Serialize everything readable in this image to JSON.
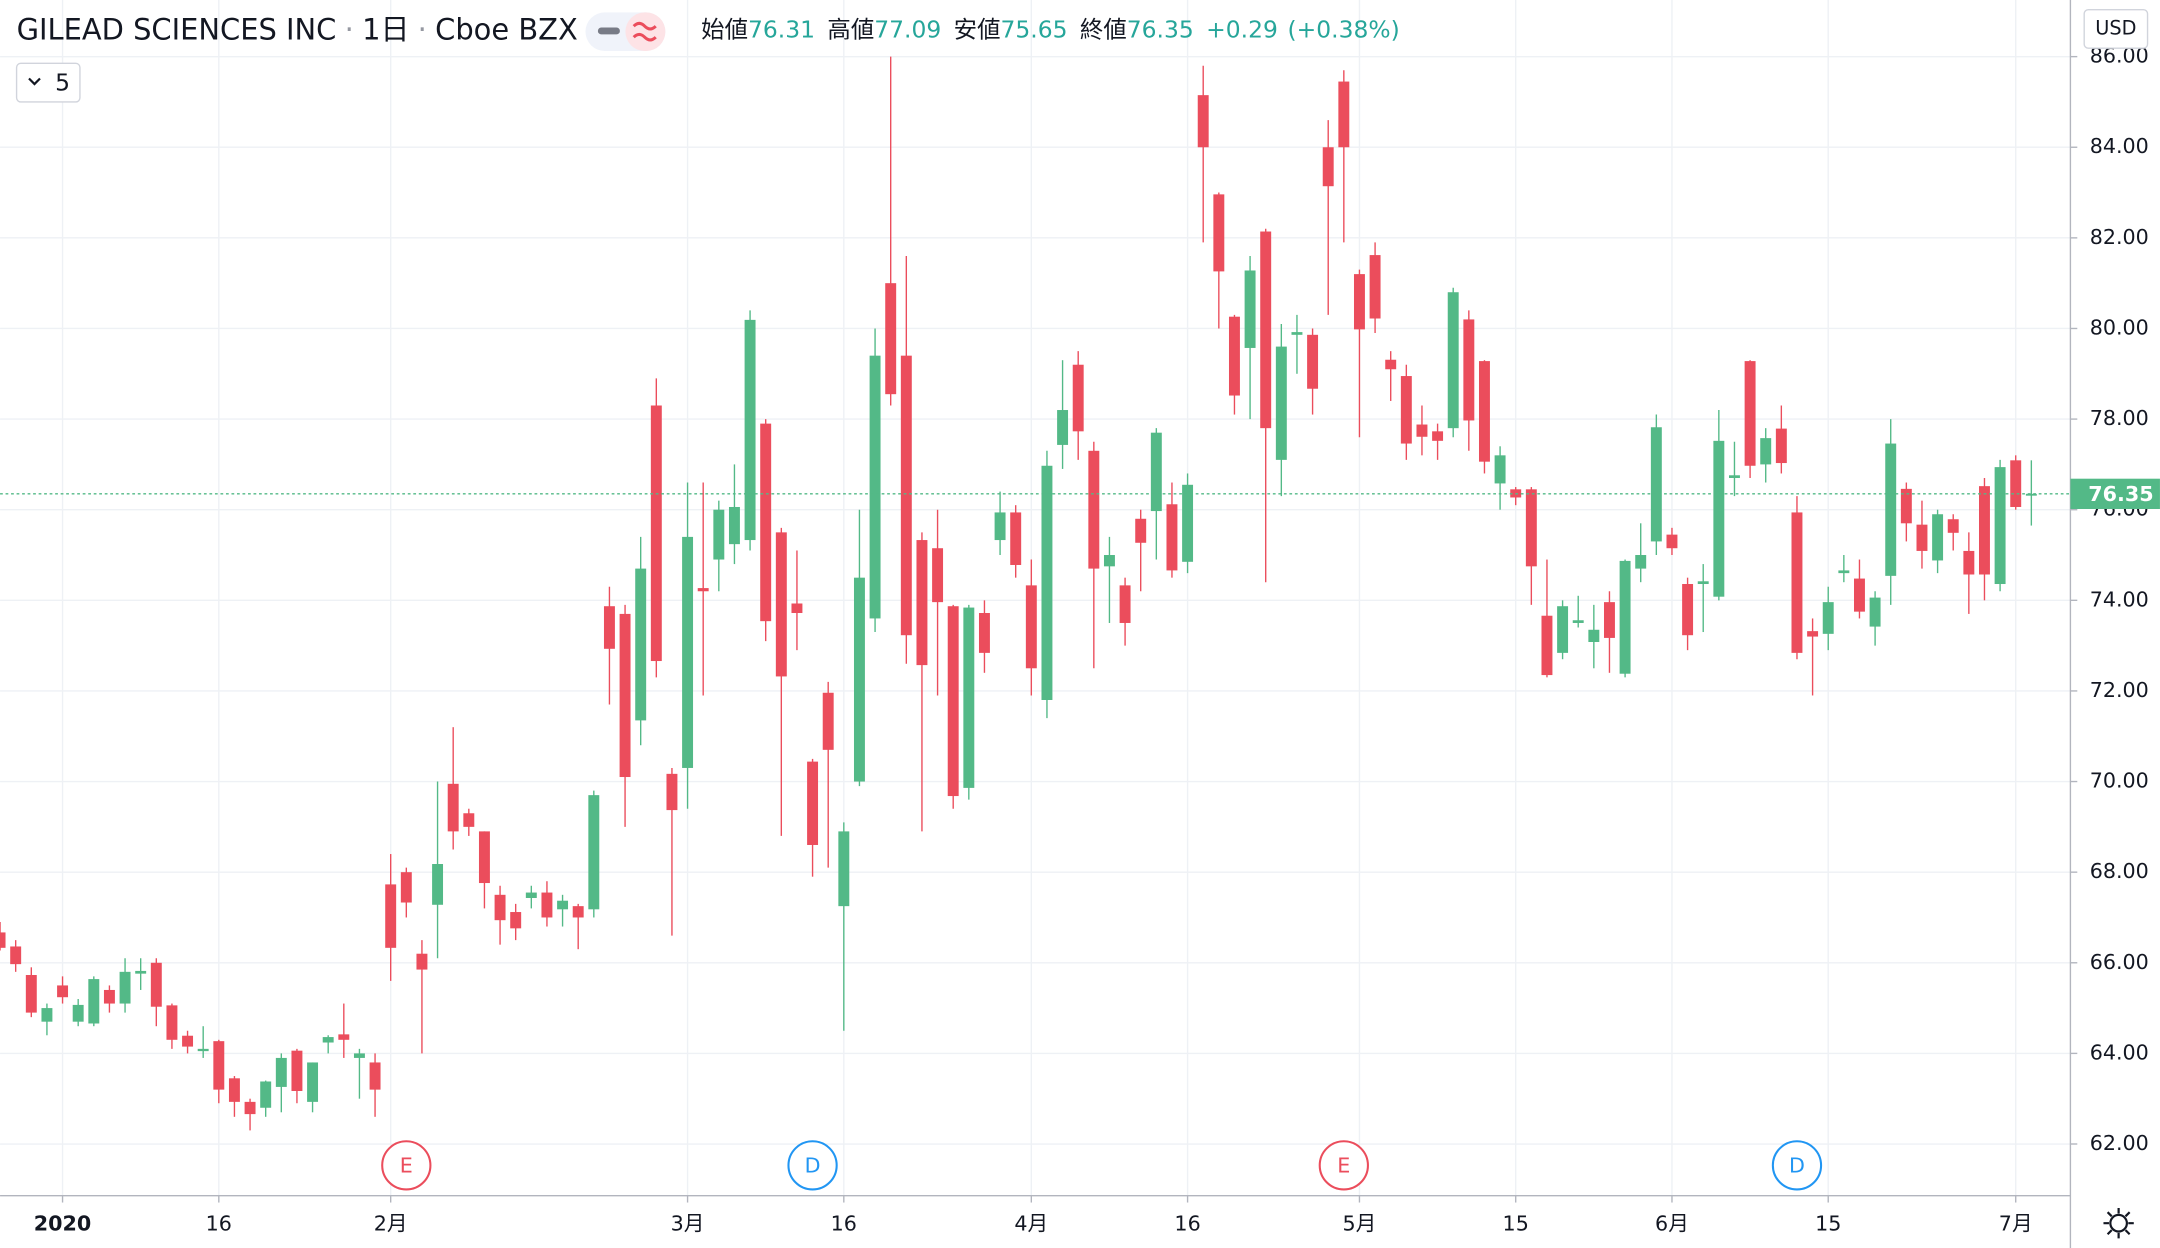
{
  "header": {
    "symbol": "GILEAD SCIENCES INC",
    "interval": "1日",
    "exchange": "Cboe BZX",
    "open_label": "始値",
    "high_label": "高値",
    "low_label": "安値",
    "close_label": "終値",
    "change": "+0.29",
    "change_pct": "(+0.38%)"
  },
  "ui": {
    "bars_setting": "5",
    "currency": "USD"
  },
  "chart_data": {
    "type": "candlestick",
    "up_color": "#53b987",
    "down_color": "#eb4d5c",
    "grid": true,
    "open": [
      66.67,
      66.36,
      65.73,
      64.7,
      65.5,
      64.7,
      64.66,
      65.4,
      65.1,
      65.76,
      66.0,
      65.06,
      64.39,
      64.05,
      64.27,
      63.45,
      62.93,
      62.8,
      63.26,
      64.06,
      62.93,
      64.24,
      64.42,
      63.9,
      63.8,
      67.73,
      68.0,
      66.2,
      67.28,
      69.95,
      69.3,
      68.9,
      67.5,
      67.12,
      67.43,
      67.55,
      67.18,
      67.25,
      67.18,
      73.87,
      73.7,
      71.35,
      78.3,
      70.17,
      70.3,
      74.27,
      74.9,
      75.24,
      75.33,
      77.9,
      75.5,
      73.93,
      70.44,
      71.96,
      67.25,
      70.0,
      73.6,
      81.0,
      79.4,
      75.33,
      75.15,
      73.87,
      69.86,
      73.72,
      75.33,
      75.94,
      74.33,
      71.8,
      77.43,
      79.2,
      77.3,
      74.75,
      74.33,
      75.8,
      75.97,
      76.12,
      74.85,
      85.15,
      82.96,
      80.26,
      79.57,
      82.14,
      77.1,
      79.86,
      79.86,
      84.0,
      85.45,
      81.2,
      81.62,
      79.31,
      78.95,
      77.88,
      77.73,
      77.8,
      80.2,
      79.28,
      76.58,
      76.45,
      76.45,
      73.66,
      72.84,
      73.5,
      73.08,
      73.96,
      72.38,
      74.7,
      75.3,
      75.45,
      74.36,
      74.36,
      74.08,
      76.7,
      79.28,
      77.0,
      77.79,
      75.94,
      73.32,
      73.26,
      74.6,
      74.48,
      73.42,
      74.54,
      76.46,
      75.67,
      74.88,
      75.79,
      75.09,
      76.52,
      74.36,
      77.09,
      76.31
    ],
    "high": [
      66.9,
      66.5,
      65.9,
      65.1,
      65.7,
      65.2,
      65.7,
      65.5,
      66.1,
      66.1,
      66.1,
      65.1,
      64.5,
      64.6,
      64.3,
      63.5,
      63.0,
      63.4,
      64.0,
      64.1,
      63.8,
      64.4,
      65.1,
      64.1,
      64.0,
      68.4,
      68.1,
      66.5,
      70.0,
      71.2,
      69.4,
      68.9,
      67.7,
      67.3,
      67.7,
      67.8,
      67.5,
      67.3,
      69.8,
      74.3,
      73.9,
      75.4,
      78.9,
      70.3,
      76.6,
      76.6,
      76.2,
      77.0,
      80.4,
      78.0,
      75.6,
      75.1,
      70.5,
      72.2,
      69.1,
      76.0,
      80.0,
      86.0,
      81.6,
      75.5,
      76.0,
      73.9,
      73.9,
      74.0,
      76.4,
      76.1,
      74.9,
      77.3,
      79.3,
      79.5,
      77.5,
      75.4,
      74.5,
      76.0,
      77.8,
      76.6,
      76.8,
      85.8,
      83.0,
      80.3,
      81.6,
      82.2,
      80.1,
      80.3,
      80.0,
      84.6,
      85.7,
      81.3,
      81.9,
      79.5,
      79.2,
      78.3,
      77.9,
      80.9,
      80.4,
      79.3,
      77.4,
      76.5,
      76.5,
      74.9,
      74.0,
      74.1,
      73.9,
      74.2,
      74.9,
      75.7,
      78.1,
      75.6,
      74.5,
      74.8,
      78.2,
      77.5,
      79.3,
      77.8,
      78.3,
      76.3,
      73.6,
      74.3,
      75.0,
      74.9,
      74.2,
      78.0,
      76.6,
      76.2,
      76.0,
      75.9,
      75.5,
      76.7,
      77.1,
      77.2,
      77.09
    ],
    "low": [
      66.27,
      65.8,
      64.8,
      64.4,
      65.1,
      64.6,
      64.6,
      64.9,
      64.9,
      65.4,
      64.6,
      64.1,
      64.0,
      63.9,
      62.9,
      62.6,
      62.3,
      62.6,
      62.7,
      62.9,
      62.7,
      64.0,
      63.9,
      63.0,
      62.6,
      65.6,
      67.0,
      64.0,
      66.1,
      68.5,
      68.8,
      67.2,
      66.4,
      66.5,
      67.2,
      66.8,
      66.8,
      66.3,
      67.0,
      71.7,
      69.0,
      70.8,
      72.3,
      66.6,
      69.4,
      71.9,
      74.2,
      74.8,
      75.1,
      73.1,
      68.8,
      72.9,
      67.9,
      68.1,
      64.5,
      69.9,
      73.3,
      78.3,
      72.6,
      68.9,
      71.9,
      69.4,
      69.6,
      72.4,
      75.0,
      74.5,
      71.9,
      71.4,
      76.9,
      77.1,
      72.5,
      73.5,
      73.0,
      74.2,
      74.9,
      74.5,
      74.6,
      81.9,
      80.0,
      78.1,
      78.0,
      74.4,
      76.3,
      79.0,
      78.1,
      80.3,
      81.9,
      77.6,
      79.9,
      78.4,
      77.1,
      77.2,
      77.1,
      77.6,
      77.3,
      76.8,
      76.0,
      76.1,
      73.9,
      72.3,
      72.7,
      73.4,
      72.5,
      72.4,
      72.3,
      74.4,
      75.0,
      75.0,
      72.9,
      73.3,
      74.0,
      76.3,
      76.7,
      76.6,
      76.8,
      72.7,
      71.9,
      72.9,
      74.4,
      73.6,
      73.0,
      73.9,
      75.3,
      74.7,
      74.6,
      75.1,
      73.7,
      74.0,
      74.2,
      76.0,
      75.65
    ],
    "close": [
      66.33,
      65.97,
      64.9,
      65.0,
      65.24,
      65.07,
      65.64,
      65.1,
      65.8,
      65.82,
      65.03,
      64.3,
      64.15,
      64.1,
      63.2,
      62.93,
      62.66,
      63.38,
      63.9,
      63.17,
      63.8,
      64.36,
      64.3,
      64.0,
      63.2,
      66.33,
      67.33,
      65.85,
      68.18,
      68.9,
      69.0,
      67.76,
      66.94,
      66.76,
      67.55,
      67.0,
      67.37,
      67.0,
      69.7,
      72.93,
      70.1,
      74.7,
      72.66,
      69.37,
      75.4,
      74.2,
      76.0,
      76.06,
      80.19,
      73.54,
      72.32,
      73.72,
      68.6,
      70.7,
      68.9,
      74.5,
      79.4,
      78.55,
      73.23,
      72.57,
      73.96,
      69.68,
      73.84,
      72.84,
      75.94,
      74.78,
      72.5,
      76.97,
      78.2,
      77.73,
      74.7,
      75.0,
      73.5,
      75.27,
      77.7,
      74.66,
      76.55,
      84.0,
      81.26,
      78.52,
      81.28,
      77.8,
      79.6,
      79.92,
      78.67,
      83.14,
      84.0,
      79.98,
      80.22,
      79.1,
      77.46,
      77.61,
      77.52,
      80.8,
      77.97,
      77.06,
      77.2,
      76.27,
      74.75,
      72.35,
      73.87,
      73.56,
      73.35,
      73.17,
      74.87,
      75.0,
      77.82,
      75.15,
      73.23,
      74.42,
      77.52,
      76.76,
      76.97,
      77.58,
      77.03,
      72.84,
      73.2,
      73.96,
      74.66,
      73.75,
      74.06,
      77.46,
      75.7,
      75.09,
      75.9,
      75.49,
      74.57,
      74.57,
      76.94,
      76.06,
      76.35
    ],
    "xlim": [
      0,
      132.5
    ],
    "xticks": [
      {
        "value": 4,
        "label": "2020"
      },
      {
        "value": 14,
        "label": "16"
      },
      {
        "value": 25,
        "label": "2月"
      },
      {
        "value": 44,
        "label": "3月"
      },
      {
        "value": 54,
        "label": "16"
      },
      {
        "value": 66,
        "label": "4月"
      },
      {
        "value": 76,
        "label": "16"
      },
      {
        "value": 87,
        "label": "5月"
      },
      {
        "value": 97,
        "label": "15"
      },
      {
        "value": 107,
        "label": "6月"
      },
      {
        "value": 117,
        "label": "15"
      },
      {
        "value": 129,
        "label": "7月"
      }
    ],
    "ylim": [
      60.86,
      87.25
    ],
    "yticks": [
      {
        "value": 62,
        "label": "62.00"
      },
      {
        "value": 64,
        "label": "64.00"
      },
      {
        "value": 66,
        "label": "66.00"
      },
      {
        "value": 68,
        "label": "68.00"
      },
      {
        "value": 70,
        "label": "70.00"
      },
      {
        "value": 72,
        "label": "72.00"
      },
      {
        "value": 74,
        "label": "74.00"
      },
      {
        "value": 76,
        "label": "76.00"
      },
      {
        "value": 78,
        "label": "78.00"
      },
      {
        "value": 80,
        "label": "80.00"
      },
      {
        "value": 82,
        "label": "82.00"
      },
      {
        "value": 84,
        "label": "84.00"
      },
      {
        "value": 86,
        "label": "86.00"
      }
    ],
    "events": [
      {
        "index": 26,
        "label": "E",
        "color": "#eb4d5c"
      },
      {
        "index": 52,
        "label": "D",
        "color": "#2196f3"
      },
      {
        "index": 86,
        "label": "E",
        "color": "#eb4d5c"
      },
      {
        "index": 115,
        "label": "D",
        "color": "#2196f3"
      }
    ]
  }
}
